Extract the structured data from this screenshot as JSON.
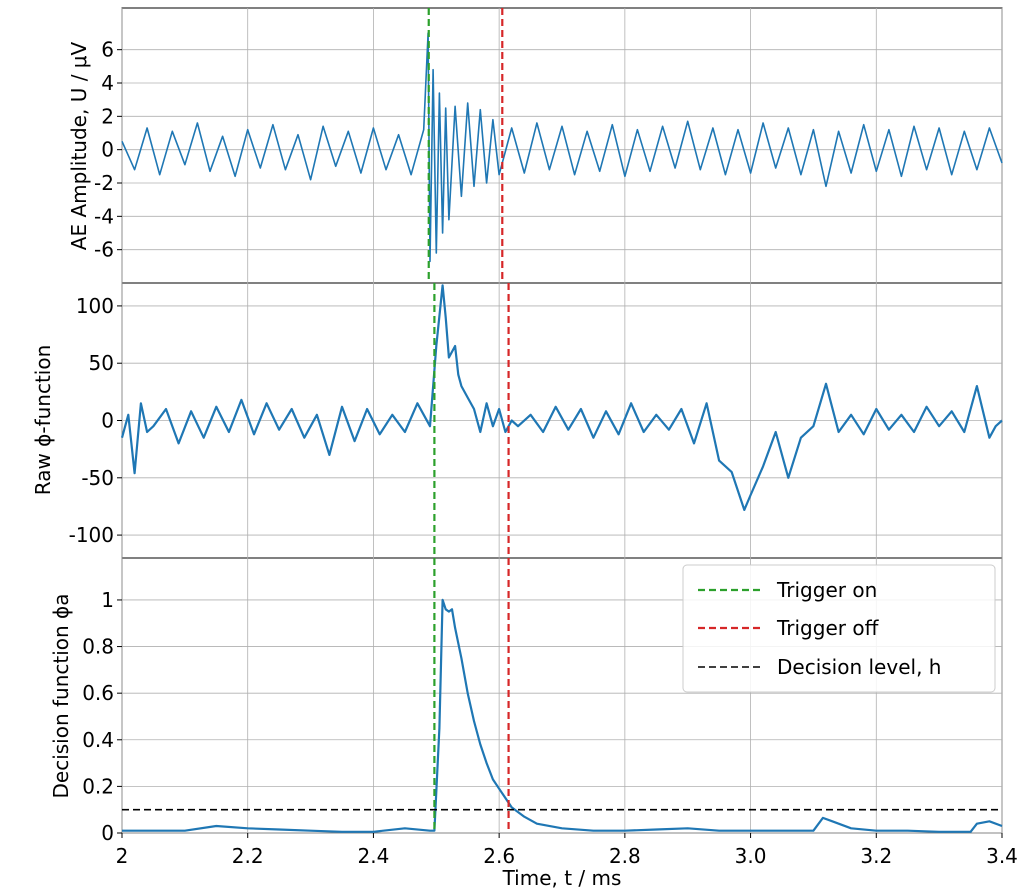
{
  "chart_data": [
    {
      "type": "line",
      "id": "amplitude",
      "ylabel": "AE Amplitude, U / μV",
      "xlim": [
        2.0,
        3.4
      ],
      "ylim": [
        -8.0,
        8.5
      ],
      "yticks": [
        -6,
        -4,
        -2,
        0,
        2,
        4,
        6
      ],
      "ytick_labels": [
        "-6",
        "-4",
        "-2",
        "0",
        "2",
        "4",
        "6"
      ],
      "grid": true,
      "series": [
        {
          "color": "#1f77b4",
          "x": [
            2.0,
            2.02,
            2.04,
            2.06,
            2.08,
            2.1,
            2.12,
            2.14,
            2.16,
            2.18,
            2.2,
            2.22,
            2.24,
            2.26,
            2.28,
            2.3,
            2.32,
            2.34,
            2.36,
            2.38,
            2.4,
            2.42,
            2.44,
            2.46,
            2.48,
            2.487,
            2.49,
            2.495,
            2.5,
            2.505,
            2.51,
            2.515,
            2.52,
            2.53,
            2.54,
            2.55,
            2.56,
            2.57,
            2.58,
            2.59,
            2.6,
            2.62,
            2.64,
            2.66,
            2.68,
            2.7,
            2.72,
            2.74,
            2.76,
            2.78,
            2.8,
            2.82,
            2.84,
            2.86,
            2.88,
            2.9,
            2.92,
            2.94,
            2.96,
            2.98,
            3.0,
            3.02,
            3.04,
            3.06,
            3.08,
            3.1,
            3.12,
            3.14,
            3.16,
            3.18,
            3.2,
            3.22,
            3.24,
            3.26,
            3.28,
            3.3,
            3.32,
            3.34,
            3.36,
            3.38,
            3.4
          ],
          "y": [
            0.5,
            -1.2,
            1.3,
            -1.5,
            1.1,
            -0.9,
            1.6,
            -1.3,
            0.8,
            -1.6,
            1.2,
            -1.1,
            1.5,
            -1.2,
            0.9,
            -1.8,
            1.4,
            -1.0,
            1.1,
            -1.4,
            1.3,
            -1.2,
            0.9,
            -1.5,
            1.2,
            7.0,
            -6.7,
            4.8,
            -6.2,
            3.4,
            -5.0,
            2.5,
            -4.2,
            2.6,
            -2.8,
            2.8,
            -2.2,
            2.4,
            -2.0,
            1.8,
            -1.5,
            1.3,
            -1.4,
            1.6,
            -1.2,
            1.4,
            -1.5,
            1.1,
            -1.3,
            1.5,
            -1.6,
            1.2,
            -1.3,
            1.4,
            -1.1,
            1.7,
            -1.2,
            1.3,
            -1.5,
            1.2,
            -1.4,
            1.6,
            -1.1,
            1.3,
            -1.5,
            1.2,
            -2.2,
            1.1,
            -1.4,
            1.5,
            -1.3,
            1.2,
            -1.6,
            1.4,
            -1.2,
            1.3,
            -1.5,
            1.1,
            -1.2,
            1.3,
            -0.8
          ]
        }
      ],
      "vlines": [
        {
          "x": 2.488,
          "color": "#2ca02c",
          "style": "dashed"
        },
        {
          "x": 2.605,
          "color": "#d62728",
          "style": "dashed"
        }
      ]
    },
    {
      "type": "line",
      "id": "raw-phi",
      "ylabel": "Raw ϕ-function",
      "xlim": [
        2.0,
        3.4
      ],
      "ylim": [
        -120,
        120
      ],
      "yticks": [
        -100,
        -50,
        0,
        50,
        100
      ],
      "ytick_labels": [
        "-100",
        "-50",
        "0",
        "50",
        "100"
      ],
      "grid": true,
      "series": [
        {
          "color": "#1f77b4",
          "x": [
            2.0,
            2.01,
            2.02,
            2.03,
            2.04,
            2.05,
            2.07,
            2.09,
            2.11,
            2.13,
            2.15,
            2.17,
            2.19,
            2.21,
            2.23,
            2.25,
            2.27,
            2.29,
            2.31,
            2.33,
            2.35,
            2.37,
            2.39,
            2.41,
            2.43,
            2.45,
            2.47,
            2.49,
            2.5,
            2.51,
            2.515,
            2.52,
            2.53,
            2.535,
            2.54,
            2.55,
            2.56,
            2.57,
            2.58,
            2.59,
            2.6,
            2.61,
            2.62,
            2.63,
            2.65,
            2.67,
            2.69,
            2.71,
            2.73,
            2.75,
            2.77,
            2.79,
            2.81,
            2.83,
            2.85,
            2.87,
            2.89,
            2.91,
            2.93,
            2.95,
            2.97,
            2.99,
            3.0,
            3.02,
            3.04,
            3.06,
            3.08,
            3.1,
            3.12,
            3.14,
            3.16,
            3.18,
            3.2,
            3.22,
            3.24,
            3.26,
            3.28,
            3.3,
            3.32,
            3.34,
            3.36,
            3.38,
            3.39,
            3.4
          ],
          "y": [
            -15,
            5,
            -46,
            15,
            -10,
            -5,
            10,
            -20,
            8,
            -15,
            12,
            -10,
            18,
            -12,
            15,
            -8,
            10,
            -15,
            5,
            -30,
            12,
            -18,
            10,
            -12,
            5,
            -10,
            15,
            -5,
            65,
            118,
            90,
            55,
            65,
            40,
            30,
            20,
            10,
            -10,
            15,
            -5,
            10,
            -10,
            0,
            -5,
            5,
            -10,
            12,
            -8,
            10,
            -15,
            8,
            -12,
            15,
            -10,
            5,
            -8,
            10,
            -20,
            15,
            -35,
            -45,
            -78,
            -65,
            -40,
            -10,
            -50,
            -15,
            -5,
            32,
            -10,
            5,
            -12,
            10,
            -8,
            5,
            -10,
            12,
            -5,
            8,
            -10,
            30,
            -15,
            -5,
            0
          ]
        }
      ],
      "vlines": [
        {
          "x": 2.497,
          "color": "#2ca02c",
          "style": "dashed"
        },
        {
          "x": 2.615,
          "color": "#d62728",
          "style": "dashed"
        }
      ]
    },
    {
      "type": "line",
      "id": "decision",
      "ylabel": "Decision function  ϕa",
      "xlabel": "Time, t / ms",
      "xlim": [
        2.0,
        3.4
      ],
      "ylim": [
        0,
        1.18
      ],
      "xticks": [
        2.0,
        2.2,
        2.4,
        2.6,
        2.8,
        3.0,
        3.2,
        3.4
      ],
      "xtick_labels": [
        "2",
        "2.2",
        "2.4",
        "2.6",
        "2.8",
        "3.0",
        "3.2",
        "3.4"
      ],
      "yticks": [
        0,
        0.2,
        0.4,
        0.6,
        0.8,
        1
      ],
      "ytick_labels": [
        "0",
        "0.2",
        "0.4",
        "0.6",
        "0.8",
        "1"
      ],
      "grid": true,
      "legend_position": "upper-right",
      "series": [
        {
          "color": "#1f77b4",
          "x": [
            2.0,
            2.05,
            2.1,
            2.15,
            2.2,
            2.25,
            2.3,
            2.35,
            2.4,
            2.45,
            2.49,
            2.497,
            2.505,
            2.51,
            2.515,
            2.52,
            2.525,
            2.53,
            2.54,
            2.55,
            2.56,
            2.57,
            2.58,
            2.59,
            2.6,
            2.61,
            2.62,
            2.64,
            2.66,
            2.7,
            2.75,
            2.8,
            2.85,
            2.9,
            2.95,
            3.0,
            3.05,
            3.1,
            3.115,
            3.13,
            3.16,
            3.2,
            3.25,
            3.3,
            3.35,
            3.36,
            3.38,
            3.4
          ],
          "y": [
            0.01,
            0.01,
            0.01,
            0.03,
            0.02,
            0.015,
            0.01,
            0.005,
            0.005,
            0.02,
            0.01,
            0.01,
            0.45,
            1.0,
            0.96,
            0.95,
            0.96,
            0.88,
            0.75,
            0.6,
            0.48,
            0.38,
            0.3,
            0.23,
            0.19,
            0.15,
            0.11,
            0.07,
            0.04,
            0.02,
            0.01,
            0.01,
            0.015,
            0.02,
            0.01,
            0.01,
            0.01,
            0.01,
            0.065,
            0.05,
            0.02,
            0.01,
            0.01,
            0.005,
            0.005,
            0.04,
            0.05,
            0.03
          ]
        }
      ],
      "vlines": [
        {
          "x": 2.497,
          "color": "#2ca02c",
          "style": "dashed"
        },
        {
          "x": 2.615,
          "color": "#d62728",
          "style": "dashed"
        }
      ],
      "hlines": [
        {
          "y": 0.1,
          "color": "#000000",
          "style": "dashed"
        }
      ],
      "legend": [
        {
          "label": "Trigger on",
          "color": "#2ca02c"
        },
        {
          "label": "Trigger off",
          "color": "#d62728"
        },
        {
          "label": "Decision level, h",
          "color": "#000000"
        }
      ]
    }
  ]
}
